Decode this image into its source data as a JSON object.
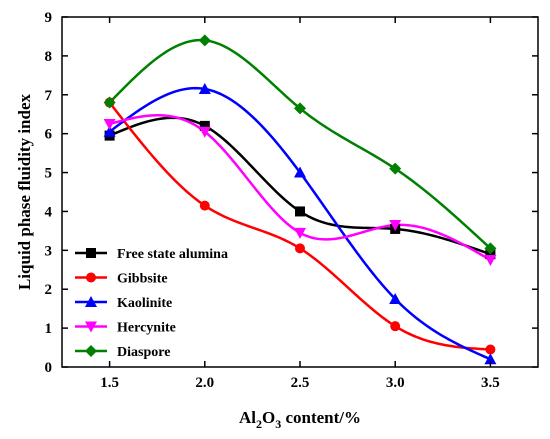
{
  "chart_data": {
    "type": "scatter",
    "title": "",
    "xlabel": {
      "prefix": "Al",
      "sub1": "2",
      "mid": "O",
      "sub2": "3",
      "suffix": " content/%"
    },
    "ylabel": "Liquid phase fluidity index",
    "xlim": [
      1.25,
      3.75
    ],
    "ylim": [
      0,
      9
    ],
    "xticks": [
      1.5,
      2.0,
      2.5,
      3.0,
      3.5
    ],
    "xtick_labels": [
      "1.5",
      "2.0",
      "2.5",
      "3.0",
      "3.5"
    ],
    "yticks": [
      0,
      1,
      2,
      3,
      4,
      5,
      6,
      7,
      8,
      9
    ],
    "ytick_labels": [
      "0",
      "1",
      "2",
      "3",
      "4",
      "5",
      "6",
      "7",
      "8",
      "9"
    ],
    "grid": false,
    "legend_position": "bottom-left",
    "curves": "smooth spline fits through points",
    "x": [
      1.5,
      2.0,
      2.5,
      3.0,
      3.5
    ],
    "series": [
      {
        "name": "Free state alumina",
        "color": "#000000",
        "marker": "square",
        "values": [
          5.95,
          6.2,
          4.0,
          3.55,
          2.9
        ]
      },
      {
        "name": "Gibbsite",
        "color": "#ff0000",
        "marker": "circle",
        "values": [
          6.8,
          4.15,
          3.05,
          1.05,
          0.45
        ]
      },
      {
        "name": "Kaolinite",
        "color": "#0000ff",
        "marker": "triangle-up",
        "values": [
          6.05,
          7.15,
          5.0,
          1.75,
          0.2
        ]
      },
      {
        "name": "Hercynite",
        "color": "#ff00ff",
        "marker": "triangle-down",
        "values": [
          6.25,
          6.05,
          3.45,
          3.65,
          2.75
        ]
      },
      {
        "name": "Diaspore",
        "color": "#008000",
        "marker": "diamond",
        "values": [
          6.8,
          8.4,
          6.65,
          5.1,
          3.05
        ]
      }
    ]
  }
}
